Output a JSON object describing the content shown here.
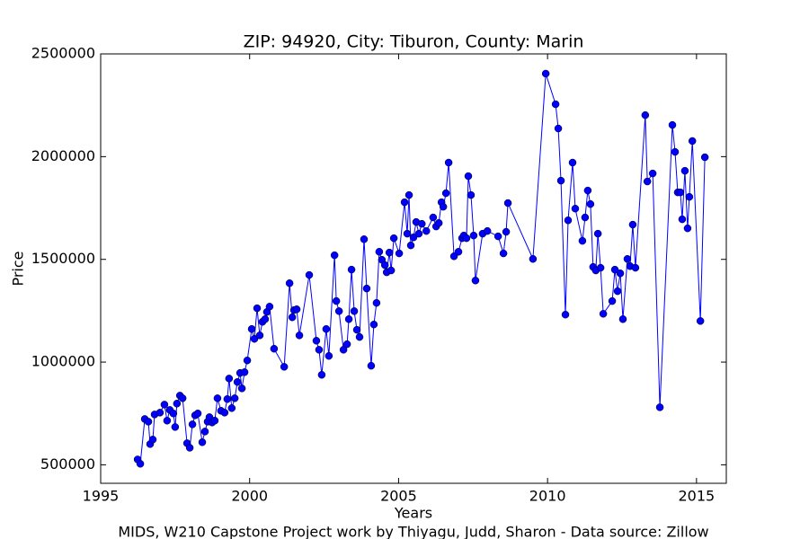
{
  "chart_data": {
    "type": "line",
    "title": "ZIP: 94920, City: Tiburon, County: Marin",
    "xlabel": "Years",
    "ylabel": "Price",
    "footer": "MIDS, W210 Capstone Project work by Thiyagu, Judd, Sharon  -  Data source: Zillow",
    "xlim": [
      1995,
      2016
    ],
    "xticks": [
      1995,
      2000,
      2005,
      2010,
      2015
    ],
    "ylim": [
      410000,
      2500000
    ],
    "yticks": [
      500000,
      1000000,
      1500000,
      2000000,
      2500000
    ],
    "grid": false,
    "x": [
      1996.24,
      1996.33,
      1996.48,
      1996.6,
      1996.66,
      1996.75,
      1996.81,
      1996.99,
      1997.14,
      1997.23,
      1997.32,
      1997.44,
      1997.5,
      1997.56,
      1997.66,
      1997.75,
      1997.9,
      1997.99,
      1998.08,
      1998.17,
      1998.26,
      1998.41,
      1998.5,
      1998.59,
      1998.65,
      1998.74,
      1998.83,
      1998.92,
      1999.04,
      1999.16,
      1999.25,
      1999.31,
      1999.4,
      1999.5,
      1999.59,
      1999.68,
      1999.74,
      1999.83,
      1999.92,
      2000.07,
      2000.16,
      2000.25,
      2000.34,
      2000.43,
      2000.52,
      2000.58,
      2000.67,
      2000.82,
      2001.16,
      2001.34,
      2001.43,
      2001.49,
      2001.58,
      2001.67,
      2002.0,
      2002.24,
      2002.33,
      2002.42,
      2002.57,
      2002.66,
      2002.85,
      2002.91,
      2003.0,
      2003.15,
      2003.27,
      2003.33,
      2003.42,
      2003.51,
      2003.6,
      2003.69,
      2003.84,
      2003.93,
      2004.08,
      2004.17,
      2004.26,
      2004.35,
      2004.44,
      2004.54,
      2004.6,
      2004.69,
      2004.75,
      2004.84,
      2005.02,
      2005.2,
      2005.29,
      2005.35,
      2005.41,
      2005.5,
      2005.59,
      2005.68,
      2005.78,
      2005.93,
      2006.16,
      2006.26,
      2006.35,
      2006.44,
      2006.5,
      2006.59,
      2006.68,
      2006.86,
      2007.01,
      2007.13,
      2007.19,
      2007.28,
      2007.34,
      2007.43,
      2007.52,
      2007.58,
      2007.82,
      2007.98,
      2008.34,
      2008.52,
      2008.61,
      2008.67,
      2009.51,
      2009.94,
      2010.27,
      2010.36,
      2010.45,
      2010.6,
      2010.69,
      2010.84,
      2010.93,
      2011.17,
      2011.26,
      2011.35,
      2011.44,
      2011.53,
      2011.62,
      2011.69,
      2011.78,
      2011.87,
      2012.17,
      2012.26,
      2012.35,
      2012.44,
      2012.53,
      2012.68,
      2012.77,
      2012.86,
      2012.95,
      2013.28,
      2013.35,
      2013.53,
      2013.77,
      2014.19,
      2014.28,
      2014.37,
      2014.46,
      2014.52,
      2014.61,
      2014.7,
      2014.76,
      2014.86,
      2015.13,
      2015.28
    ],
    "series": [
      {
        "color": "#0000ff",
        "values": [
          526000,
          505000,
          723000,
          710000,
          601000,
          623000,
          745000,
          754000,
          793000,
          715000,
          767000,
          750000,
          684000,
          798000,
          837000,
          824000,
          605000,
          583000,
          697000,
          741000,
          750000,
          610000,
          662000,
          710000,
          732000,
          706000,
          715000,
          824000,
          763000,
          754000,
          820000,
          920000,
          776000,
          824000,
          903000,
          947000,
          872000,
          951000,
          1008000,
          1161000,
          1113000,
          1262000,
          1130000,
          1196000,
          1209000,
          1244000,
          1270000,
          1065000,
          977000,
          1384000,
          1218000,
          1253000,
          1257000,
          1130000,
          1424000,
          1104000,
          1060000,
          938000,
          1161000,
          1030000,
          1520000,
          1297000,
          1248000,
          1060000,
          1087000,
          1209000,
          1450000,
          1248000,
          1157000,
          1122000,
          1598000,
          1358000,
          982000,
          1183000,
          1288000,
          1537000,
          1498000,
          1472000,
          1437000,
          1533000,
          1446000,
          1603000,
          1529000,
          1778000,
          1625000,
          1813000,
          1568000,
          1607000,
          1682000,
          1625000,
          1673000,
          1638000,
          1704000,
          1660000,
          1677000,
          1778000,
          1756000,
          1822000,
          1971000,
          1515000,
          1537000,
          1603000,
          1616000,
          1603000,
          1905000,
          1813000,
          1616000,
          1397000,
          1625000,
          1638000,
          1612000,
          1529000,
          1634000,
          1774000,
          1502000,
          2404000,
          2255000,
          2137000,
          1883000,
          1231000,
          1690000,
          1971000,
          1747000,
          1590000,
          1704000,
          1835000,
          1769000,
          1463000,
          1446000,
          1625000,
          1459000,
          1235000,
          1297000,
          1450000,
          1345000,
          1432000,
          1209000,
          1502000,
          1467000,
          1669000,
          1459000,
          2202000,
          1879000,
          1918000,
          780000,
          2154000,
          2023000,
          1826000,
          1826000,
          1695000,
          1931000,
          1651000,
          1804000,
          2076000,
          1200000,
          1997000
        ]
      }
    ]
  }
}
